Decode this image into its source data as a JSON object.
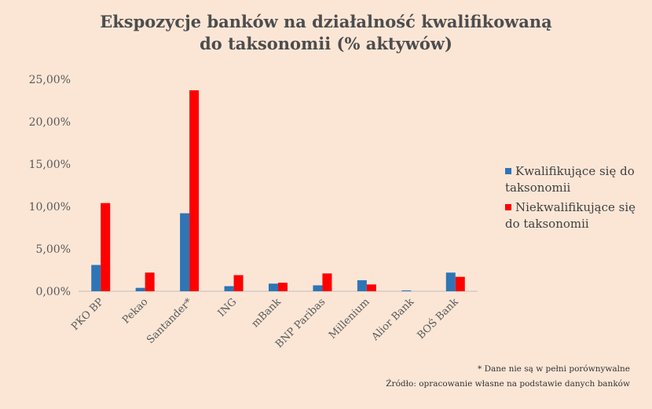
{
  "chart_data": {
    "type": "bar",
    "title_line1": "Ekspozycje banków na działalność kwalifikowaną",
    "title_line2": "do taksonomii (% aktywów)",
    "categories": [
      "PKO BP",
      "Pekao",
      "Santander*",
      "ING",
      "mBank",
      "BNP Paribas",
      "Millenium",
      "Alior Bank",
      "BOŚ Bank"
    ],
    "series": [
      {
        "name_line1": "Kwalifikujące się do",
        "name_line2": "taksonomii",
        "color": "#2e75b6",
        "values": [
          3.1,
          0.4,
          9.2,
          0.6,
          0.9,
          0.7,
          1.3,
          0.1,
          2.2
        ]
      },
      {
        "name_line1": "Niekwalifikujące się",
        "name_line2": "do taksonomii",
        "color": "#ff0000",
        "values": [
          10.4,
          2.2,
          23.7,
          1.9,
          1.0,
          2.1,
          0.8,
          0.0,
          1.7
        ]
      }
    ],
    "yticks": [
      "0,00%",
      "5,00%",
      "10,00%",
      "15,00%",
      "20,00%",
      "25,00%"
    ],
    "ylim": [
      0,
      25
    ],
    "grid": false,
    "legend_position": "right"
  },
  "notes": {
    "footnote": "* Dane nie są w pełni porównywalne",
    "source": "Źródło: opracowanie własne na podstawie danych banków"
  }
}
